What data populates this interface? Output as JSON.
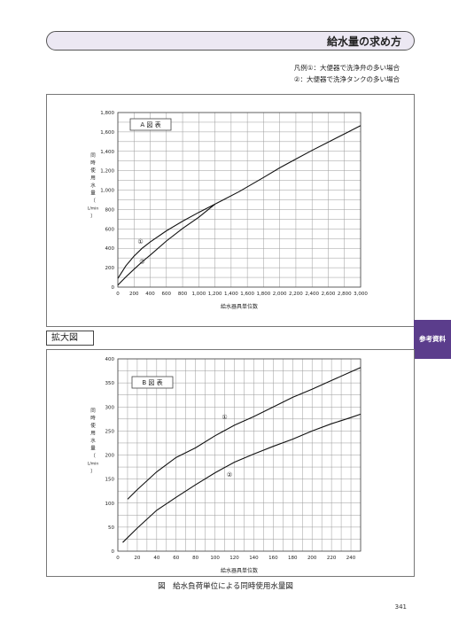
{
  "header": {
    "title": "給水量の求め方"
  },
  "legend": {
    "line1": "凡例①：大便器で洗浄弁の多い場合",
    "line2": "②：大便器で洗浄タンクの多い場合"
  },
  "section_label": "拡大図",
  "side_tab": "参考資料",
  "caption": "図　給水負荷単位による同時使用水量図",
  "page_number": "341",
  "chart_data": [
    {
      "type": "line",
      "title": "A 図 表",
      "xlabel": "給水器具単位数",
      "ylabel_lines": [
        "同",
        "時",
        "使",
        "用",
        "水",
        "量",
        "（",
        "L/min",
        "）"
      ],
      "xlim": [
        0,
        3000
      ],
      "ylim": [
        0,
        1800
      ],
      "x_ticks": [
        0,
        200,
        400,
        600,
        800,
        1000,
        1200,
        1400,
        1600,
        1800,
        2000,
        2200,
        2400,
        2600,
        2800,
        3000
      ],
      "x_tick_labels": [
        "0",
        "200",
        "400",
        "600",
        "800",
        "1,000",
        "1,200",
        "1,400",
        "1,600",
        "1,800",
        "2,000",
        "2,200",
        "2,400",
        "2,600",
        "2,800",
        "3,000"
      ],
      "y_ticks": [
        0,
        200,
        400,
        600,
        800,
        1000,
        1200,
        1400,
        1600,
        1800
      ],
      "y_tick_labels": [
        "0",
        "200",
        "400",
        "600",
        "800",
        "1,000",
        "1,200",
        "1,400",
        "1,600",
        "1,800"
      ],
      "x_grid": [
        0,
        200,
        400,
        600,
        800,
        1000,
        1200,
        1400,
        1600,
        1800,
        2000,
        2200,
        2400,
        2600,
        2800,
        3000
      ],
      "y_grid": [
        0,
        100,
        200,
        300,
        400,
        500,
        600,
        700,
        800,
        900,
        1000,
        1100,
        1200,
        1300,
        1400,
        1500,
        1600,
        1700,
        1800
      ],
      "series": [
        {
          "name": "①",
          "label_at": [
            280,
            450
          ],
          "x": [
            0,
            100,
            200,
            300,
            400,
            600,
            800,
            1000,
            1200,
            1500,
            1800,
            2000,
            2200,
            2400,
            2600,
            2800,
            3000
          ],
          "y": [
            90,
            220,
            320,
            400,
            465,
            580,
            680,
            770,
            855,
            985,
            1130,
            1230,
            1320,
            1410,
            1495,
            1580,
            1665
          ]
        },
        {
          "name": "②",
          "label_at": [
            300,
            240
          ],
          "x": [
            0,
            100,
            200,
            300,
            400,
            600,
            800,
            1000,
            1200
          ],
          "y": [
            20,
            105,
            185,
            260,
            330,
            475,
            605,
            720,
            855
          ]
        }
      ]
    },
    {
      "type": "line",
      "title": "B 図 表",
      "xlabel": "給水器具単位数",
      "ylabel_lines": [
        "同",
        "時",
        "使",
        "用",
        "水",
        "量",
        "（",
        "L/min",
        "）"
      ],
      "xlim": [
        0,
        250
      ],
      "ylim": [
        0,
        400
      ],
      "x_ticks": [
        0,
        20,
        40,
        60,
        80,
        100,
        120,
        140,
        160,
        180,
        200,
        220,
        240
      ],
      "x_tick_labels": [
        "0",
        "20",
        "40",
        "60",
        "80",
        "100",
        "120",
        "140",
        "160",
        "180",
        "200",
        "220",
        "240"
      ],
      "y_ticks": [
        0,
        50,
        100,
        150,
        200,
        250,
        300,
        350,
        400
      ],
      "y_tick_labels": [
        "0",
        "50",
        "100",
        "150",
        "200",
        "250",
        "300",
        "350",
        "400"
      ],
      "x_grid": [
        0,
        10,
        20,
        30,
        40,
        50,
        60,
        70,
        80,
        90,
        100,
        110,
        120,
        130,
        140,
        150,
        160,
        170,
        180,
        190,
        200,
        210,
        220,
        230,
        240,
        250
      ],
      "y_grid": [
        0,
        25,
        50,
        75,
        100,
        125,
        150,
        175,
        200,
        225,
        250,
        275,
        300,
        325,
        350,
        375,
        400
      ],
      "series": [
        {
          "name": "①",
          "label_at": [
            110,
            275
          ],
          "x": [
            10,
            20,
            40,
            60,
            80,
            100,
            120,
            140,
            160,
            180,
            200,
            220,
            240,
            250
          ],
          "y": [
            108,
            128,
            165,
            195,
            215,
            240,
            262,
            280,
            300,
            320,
            337,
            355,
            373,
            382
          ]
        },
        {
          "name": "②",
          "label_at": [
            115,
            155
          ],
          "x": [
            5,
            20,
            40,
            60,
            80,
            100,
            120,
            140,
            160,
            180,
            200,
            220,
            240,
            250
          ],
          "y": [
            18,
            48,
            85,
            112,
            138,
            163,
            185,
            202,
            218,
            233,
            250,
            265,
            278,
            285
          ]
        }
      ]
    }
  ]
}
